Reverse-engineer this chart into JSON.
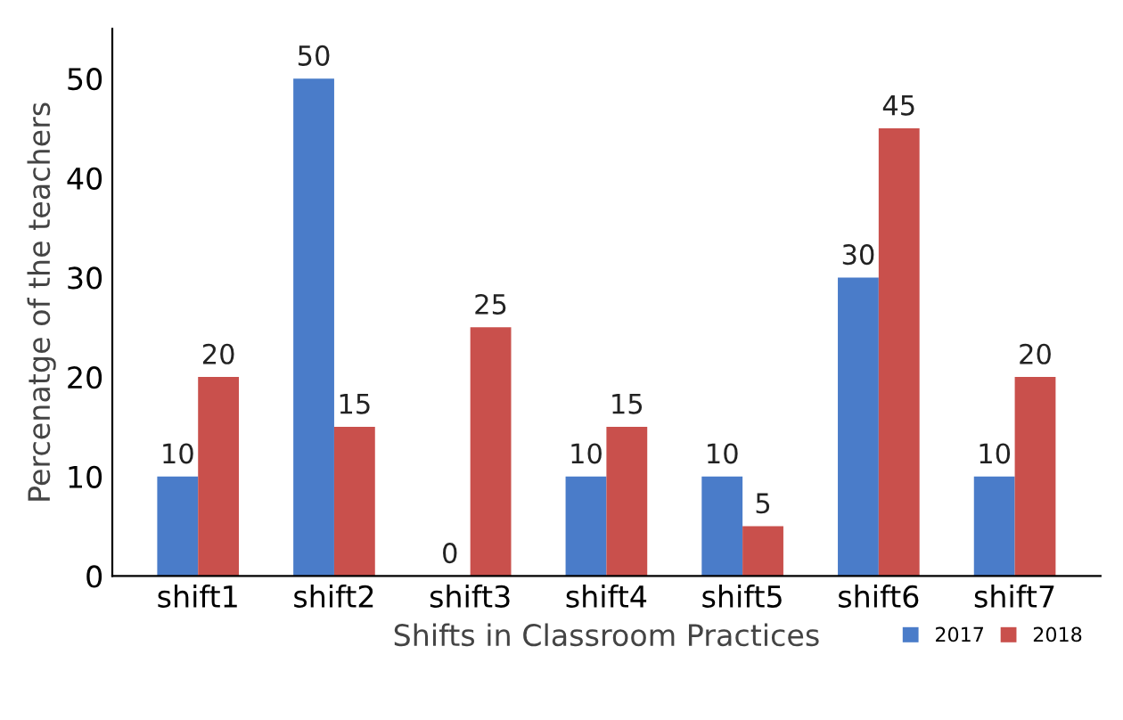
{
  "chart_data": {
    "type": "bar",
    "xlabel": "Shifts in Classroom Practices",
    "ylabel": "Percenatge of the teachers",
    "categories": [
      "shift1",
      "shift2",
      "shift3",
      "shift4",
      "shift5",
      "shift6",
      "shift7"
    ],
    "series": [
      {
        "name": "2017",
        "color": "#4a7cc9",
        "values": [
          10,
          50,
          0,
          10,
          10,
          30,
          10
        ]
      },
      {
        "name": "2018",
        "color": "#c9504c",
        "values": [
          20,
          15,
          25,
          15,
          5,
          45,
          20
        ]
      }
    ],
    "ylim": [
      0,
      55
    ],
    "yticks": [
      0,
      10,
      20,
      30,
      40,
      50
    ],
    "data_labels": true,
    "grid": false,
    "legend": "bottom right"
  }
}
